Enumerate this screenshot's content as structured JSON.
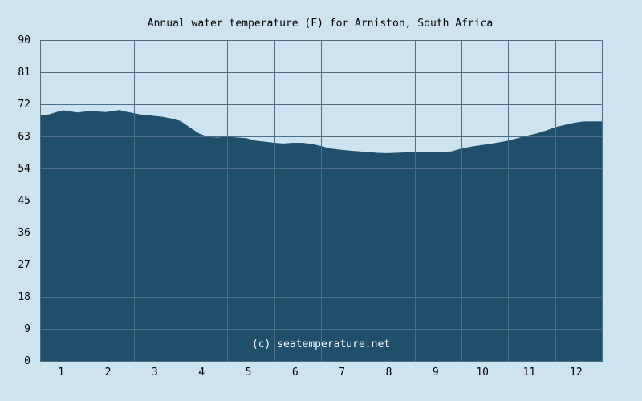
{
  "colors": {
    "background": "#cde3ef",
    "area_fill": "#1f4f6b",
    "grid": "#4f6f87",
    "watermark": "#ffffff"
  },
  "watermark": "(c) seatemperature.net",
  "chart_data": {
    "type": "area",
    "title": "Annual water temperature (F) for Arniston, South Africa",
    "xlabel": "",
    "ylabel": "",
    "x_tick_labels": [
      "1",
      "2",
      "3",
      "4",
      "5",
      "6",
      "7",
      "8",
      "9",
      "10",
      "11",
      "12"
    ],
    "y_tick_labels": [
      "0",
      "9",
      "18",
      "27",
      "36",
      "45",
      "54",
      "63",
      "72",
      "81",
      "90"
    ],
    "xlim": [
      0.5,
      12.5
    ],
    "ylim": [
      0,
      90
    ],
    "grid": true,
    "legend": "none",
    "series": [
      {
        "x": [
          0.5,
          0.7,
          0.9,
          1.0,
          1.1,
          1.3,
          1.5,
          1.7,
          1.9,
          2.1,
          2.2,
          2.3,
          2.5,
          2.7,
          2.9,
          3.1,
          3.3,
          3.5,
          3.7,
          3.9,
          4.1,
          4.3,
          4.5,
          4.7,
          4.9,
          5.1,
          5.3,
          5.5,
          5.7,
          5.9,
          6.1,
          6.3,
          6.5,
          6.7,
          6.9,
          7.1,
          7.3,
          7.5,
          7.7,
          7.9,
          8.1,
          8.3,
          8.5,
          8.7,
          8.9,
          9.1,
          9.3,
          9.5,
          9.7,
          9.9,
          10.1,
          10.3,
          10.5,
          10.7,
          10.9,
          11.1,
          11.3,
          11.5,
          11.7,
          11.9,
          12.1,
          12.3,
          12.5
        ],
        "values": [
          68.8,
          69.2,
          70.0,
          70.3,
          70.1,
          69.7,
          70.0,
          70.0,
          69.8,
          70.2,
          70.4,
          70.0,
          69.5,
          69.0,
          68.8,
          68.5,
          68.0,
          67.3,
          65.5,
          63.8,
          62.8,
          62.7,
          62.9,
          62.7,
          62.5,
          61.8,
          61.5,
          61.2,
          61.0,
          61.2,
          61.2,
          60.9,
          60.3,
          59.6,
          59.3,
          59.0,
          58.8,
          58.6,
          58.4,
          58.3,
          58.4,
          58.5,
          58.6,
          58.6,
          58.6,
          58.6,
          58.8,
          59.6,
          60.1,
          60.5,
          60.9,
          61.3,
          61.8,
          62.5,
          63.2,
          63.8,
          64.6,
          65.6,
          66.2,
          66.8,
          67.2,
          67.2,
          67.2
        ]
      }
    ]
  }
}
